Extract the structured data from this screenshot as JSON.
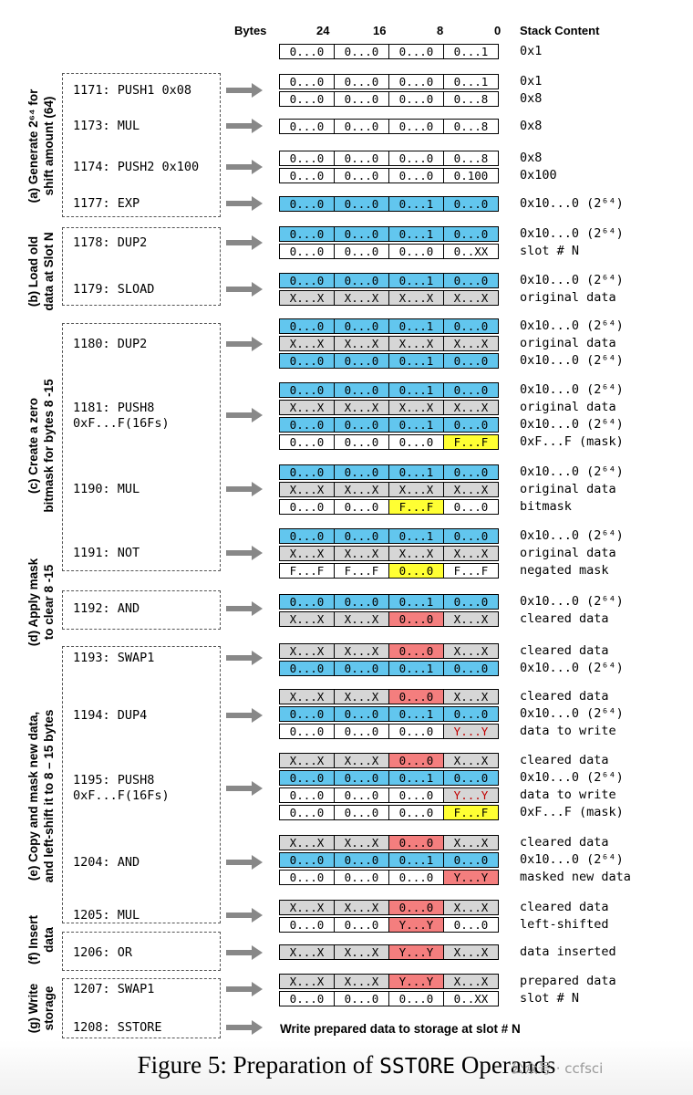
{
  "header": {
    "bytes": "Bytes",
    "b24": "24",
    "b16": "16",
    "b8": "8",
    "b0": "0",
    "stack": "Stack Content"
  },
  "colors": {
    "blue": "#62c6ee",
    "gray": "#d6d6d6",
    "yellow": "#ffff33",
    "red": "#f47e7e",
    "white": "#ffffff"
  },
  "groups": [
    {
      "id": "a",
      "label_line1": "(a) Generate 2⁶⁴ for",
      "label_line2": "shift amount (64)"
    },
    {
      "id": "b",
      "label_line1": "(b) Load old",
      "label_line2": "data at Slot N"
    },
    {
      "id": "c",
      "label_line1": "(c) Create a zero",
      "label_line2": "bitmask for bytes 8 -15"
    },
    {
      "id": "d",
      "label_line1": "(d) Apply mask",
      "label_line2": "to clear 8 -15"
    },
    {
      "id": "e",
      "label_line1": "(e) Copy and mask new data,",
      "label_line2": "and left-shift it to 8 – 15 bytes"
    },
    {
      "id": "f",
      "label_line1": "(f) Insert",
      "label_line2": "data"
    },
    {
      "id": "g",
      "label_line1": "(g) Write",
      "label_line2": "storage"
    }
  ],
  "instructions": [
    "1171: PUSH1 0x08",
    "1173: MUL",
    "1174: PUSH2 0x100",
    "1177: EXP",
    "1178: DUP2",
    "1179: SLOAD",
    "1180: DUP2",
    "1181: PUSH8\n0xF...F(16Fs)",
    "1190: MUL",
    "1191: NOT",
    "1192: AND",
    "1193: SWAP1",
    "1194: DUP4",
    "1195: PUSH8\n0xF...F(16Fs)",
    "1204: AND",
    "1205: MUL",
    "1206: OR",
    "1207: SWAP1",
    "1208: SSTORE"
  ],
  "stacks": [
    {
      "rows": [
        {
          "cells": [
            "0...0",
            "0...0",
            "0...0",
            "0...1"
          ],
          "colors": [
            "w",
            "w",
            "w",
            "w"
          ],
          "label": "0x1"
        }
      ]
    },
    {
      "rows": [
        {
          "cells": [
            "0...0",
            "0...0",
            "0...0",
            "0...1"
          ],
          "colors": [
            "w",
            "w",
            "w",
            "w"
          ],
          "label": "0x1"
        },
        {
          "cells": [
            "0...0",
            "0...0",
            "0...0",
            "0...8"
          ],
          "colors": [
            "w",
            "w",
            "w",
            "w"
          ],
          "label": "0x8"
        }
      ]
    },
    {
      "rows": [
        {
          "cells": [
            "0...0",
            "0...0",
            "0...0",
            "0...8"
          ],
          "colors": [
            "w",
            "w",
            "w",
            "w"
          ],
          "label": "0x8"
        }
      ]
    },
    {
      "rows": [
        {
          "cells": [
            "0...0",
            "0...0",
            "0...0",
            "0...8"
          ],
          "colors": [
            "w",
            "w",
            "w",
            "w"
          ],
          "label": "0x8"
        },
        {
          "cells": [
            "0...0",
            "0...0",
            "0...0",
            "0.100"
          ],
          "colors": [
            "w",
            "w",
            "w",
            "w"
          ],
          "label": "0x100"
        }
      ]
    },
    {
      "rows": [
        {
          "cells": [
            "0...0",
            "0...0",
            "0...1",
            "0...0"
          ],
          "colors": [
            "b",
            "b",
            "b",
            "b"
          ],
          "label": "0x10...0 (2⁶⁴)"
        }
      ]
    },
    {
      "rows": [
        {
          "cells": [
            "0...0",
            "0...0",
            "0...1",
            "0...0"
          ],
          "colors": [
            "b",
            "b",
            "b",
            "b"
          ],
          "label": "0x10...0 (2⁶⁴)"
        },
        {
          "cells": [
            "0...0",
            "0...0",
            "0...0",
            "0..XX"
          ],
          "colors": [
            "w",
            "w",
            "w",
            "w"
          ],
          "label": "slot # N"
        }
      ]
    },
    {
      "rows": [
        {
          "cells": [
            "0...0",
            "0...0",
            "0...1",
            "0...0"
          ],
          "colors": [
            "b",
            "b",
            "b",
            "b"
          ],
          "label": "0x10...0 (2⁶⁴)"
        },
        {
          "cells": [
            "X...X",
            "X...X",
            "X...X",
            "X...X"
          ],
          "colors": [
            "g",
            "g",
            "g",
            "g"
          ],
          "label": "original data"
        }
      ]
    },
    {
      "rows": [
        {
          "cells": [
            "0...0",
            "0...0",
            "0...1",
            "0...0"
          ],
          "colors": [
            "b",
            "b",
            "b",
            "b"
          ],
          "label": "0x10...0 (2⁶⁴)"
        },
        {
          "cells": [
            "X...X",
            "X...X",
            "X...X",
            "X...X"
          ],
          "colors": [
            "g",
            "g",
            "g",
            "g"
          ],
          "label": "original data"
        },
        {
          "cells": [
            "0...0",
            "0...0",
            "0...1",
            "0...0"
          ],
          "colors": [
            "b",
            "b",
            "b",
            "b"
          ],
          "label": "0x10...0 (2⁶⁴)"
        }
      ]
    },
    {
      "rows": [
        {
          "cells": [
            "0...0",
            "0...0",
            "0...1",
            "0...0"
          ],
          "colors": [
            "b",
            "b",
            "b",
            "b"
          ],
          "label": "0x10...0 (2⁶⁴)"
        },
        {
          "cells": [
            "X...X",
            "X...X",
            "X...X",
            "X...X"
          ],
          "colors": [
            "g",
            "g",
            "g",
            "g"
          ],
          "label": "original data"
        },
        {
          "cells": [
            "0...0",
            "0...0",
            "0...1",
            "0...0"
          ],
          "colors": [
            "b",
            "b",
            "b",
            "b"
          ],
          "label": "0x10...0 (2⁶⁴)"
        },
        {
          "cells": [
            "0...0",
            "0...0",
            "0...0",
            "F...F"
          ],
          "colors": [
            "w",
            "w",
            "w",
            "y"
          ],
          "label": "0xF...F (mask)"
        }
      ]
    },
    {
      "rows": [
        {
          "cells": [
            "0...0",
            "0...0",
            "0...1",
            "0...0"
          ],
          "colors": [
            "b",
            "b",
            "b",
            "b"
          ],
          "label": "0x10...0 (2⁶⁴)"
        },
        {
          "cells": [
            "X...X",
            "X...X",
            "X...X",
            "X...X"
          ],
          "colors": [
            "g",
            "g",
            "g",
            "g"
          ],
          "label": "original data"
        },
        {
          "cells": [
            "0...0",
            "0...0",
            "F...F",
            "0...0"
          ],
          "colors": [
            "w",
            "w",
            "y",
            "w"
          ],
          "label": "bitmask"
        }
      ]
    },
    {
      "rows": [
        {
          "cells": [
            "0...0",
            "0...0",
            "0...1",
            "0...0"
          ],
          "colors": [
            "b",
            "b",
            "b",
            "b"
          ],
          "label": "0x10...0 (2⁶⁴)"
        },
        {
          "cells": [
            "X...X",
            "X...X",
            "X...X",
            "X...X"
          ],
          "colors": [
            "g",
            "g",
            "g",
            "g"
          ],
          "label": "original data"
        },
        {
          "cells": [
            "F...F",
            "F...F",
            "0...0",
            "F...F"
          ],
          "colors": [
            "w",
            "w",
            "y",
            "w"
          ],
          "label": "negated mask"
        }
      ]
    },
    {
      "rows": [
        {
          "cells": [
            "0...0",
            "0...0",
            "0...1",
            "0...0"
          ],
          "colors": [
            "b",
            "b",
            "b",
            "b"
          ],
          "label": "0x10...0 (2⁶⁴)"
        },
        {
          "cells": [
            "X...X",
            "X...X",
            "0...0",
            "X...X"
          ],
          "colors": [
            "g",
            "g",
            "r",
            "g"
          ],
          "label": "cleared data"
        }
      ]
    },
    {
      "rows": [
        {
          "cells": [
            "X...X",
            "X...X",
            "0...0",
            "X...X"
          ],
          "colors": [
            "g",
            "g",
            "r",
            "g"
          ],
          "label": "cleared data"
        },
        {
          "cells": [
            "0...0",
            "0...0",
            "0...1",
            "0...0"
          ],
          "colors": [
            "b",
            "b",
            "b",
            "b"
          ],
          "label": "0x10...0 (2⁶⁴)"
        }
      ]
    },
    {
      "rows": [
        {
          "cells": [
            "X...X",
            "X...X",
            "0...0",
            "X...X"
          ],
          "colors": [
            "g",
            "g",
            "r",
            "g"
          ],
          "label": "cleared data"
        },
        {
          "cells": [
            "0...0",
            "0...0",
            "0...1",
            "0...0"
          ],
          "colors": [
            "b",
            "b",
            "b",
            "b"
          ],
          "label": "0x10...0 (2⁶⁴)"
        },
        {
          "cells": [
            "0...0",
            "0...0",
            "0...0",
            "Y...Y"
          ],
          "colors": [
            "w",
            "w",
            "w",
            "gy"
          ],
          "label": "data to write"
        }
      ]
    },
    {
      "rows": [
        {
          "cells": [
            "X...X",
            "X...X",
            "0...0",
            "X...X"
          ],
          "colors": [
            "g",
            "g",
            "r",
            "g"
          ],
          "label": "cleared data"
        },
        {
          "cells": [
            "0...0",
            "0...0",
            "0...1",
            "0...0"
          ],
          "colors": [
            "b",
            "b",
            "b",
            "b"
          ],
          "label": "0x10...0 (2⁶⁴)"
        },
        {
          "cells": [
            "0...0",
            "0...0",
            "0...0",
            "Y...Y"
          ],
          "colors": [
            "w",
            "w",
            "w",
            "gy"
          ],
          "label": "data to write"
        },
        {
          "cells": [
            "0...0",
            "0...0",
            "0...0",
            "F...F"
          ],
          "colors": [
            "w",
            "w",
            "w",
            "y"
          ],
          "label": "0xF...F (mask)"
        }
      ]
    },
    {
      "rows": [
        {
          "cells": [
            "X...X",
            "X...X",
            "0...0",
            "X...X"
          ],
          "colors": [
            "g",
            "g",
            "r",
            "g"
          ],
          "label": "cleared data"
        },
        {
          "cells": [
            "0...0",
            "0...0",
            "0...1",
            "0...0"
          ],
          "colors": [
            "b",
            "b",
            "b",
            "b"
          ],
          "label": "0x10...0 (2⁶⁴)"
        },
        {
          "cells": [
            "0...0",
            "0...0",
            "0...0",
            "Y...Y"
          ],
          "colors": [
            "w",
            "w",
            "w",
            "r"
          ],
          "label": "masked new data"
        }
      ]
    },
    {
      "rows": [
        {
          "cells": [
            "X...X",
            "X...X",
            "0...0",
            "X...X"
          ],
          "colors": [
            "g",
            "g",
            "r",
            "g"
          ],
          "label": "cleared data"
        },
        {
          "cells": [
            "0...0",
            "0...0",
            "Y...Y",
            "0...0"
          ],
          "colors": [
            "w",
            "w",
            "r",
            "w"
          ],
          "label": "left-shifted"
        }
      ]
    },
    {
      "rows": [
        {
          "cells": [
            "X...X",
            "X...X",
            "Y...Y",
            "X...X"
          ],
          "colors": [
            "g",
            "g",
            "r",
            "g"
          ],
          "label": "data inserted"
        }
      ]
    },
    {
      "rows": [
        {
          "cells": [
            "X...X",
            "X...X",
            "Y...Y",
            "X...X"
          ],
          "colors": [
            "g",
            "g",
            "r",
            "g"
          ],
          "label": "prepared data"
        },
        {
          "cells": [
            "0...0",
            "0...0",
            "0...0",
            "0..XX"
          ],
          "colors": [
            "w",
            "w",
            "w",
            "w"
          ],
          "label": "slot # N"
        }
      ]
    }
  ],
  "final_text": "Write prepared data to storage at slot # N",
  "caption": {
    "prefix": "Figure 5: Preparation of ",
    "mono": "SSTORE",
    "suffix": " Operands"
  },
  "watermark": "公众号 · ccfsci"
}
